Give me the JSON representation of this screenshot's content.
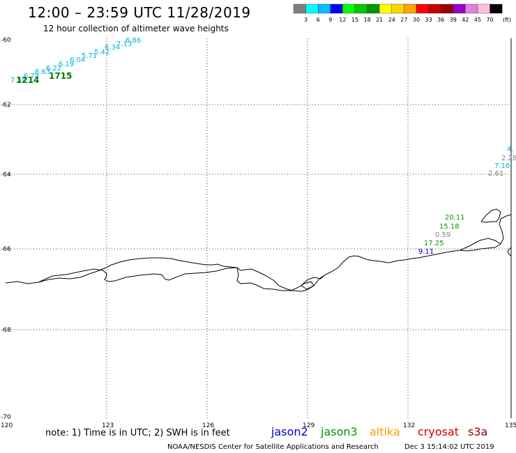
{
  "header": {
    "title": "12:00 – 23:59 UTC 11/28/2019",
    "subtitle": "12 hour collection of altimeter wave heights"
  },
  "color_scale": {
    "labels": [
      "3",
      "6",
      "9",
      "12",
      "15",
      "18",
      "21",
      "24",
      "27",
      "30",
      "33",
      "36",
      "39",
      "42",
      "45",
      "70"
    ],
    "unit": "(ft)",
    "colors": [
      "#7f7f7f",
      "#00ffff",
      "#00bfff",
      "#0000ff",
      "#00ff00",
      "#00c800",
      "#009600",
      "#ffff00",
      "#ffd700",
      "#ffa500",
      "#ff0000",
      "#c80000",
      "#960000",
      "#9600c8",
      "#e080e0",
      "#ffc0e0",
      "#000000"
    ]
  },
  "axes": {
    "lat_labels": [
      "-60",
      "-62",
      "-64",
      "-66",
      "-68",
      "-70"
    ],
    "lon_labels": [
      "120",
      "123",
      "126",
      "129",
      "132",
      "135"
    ]
  },
  "observations": [
    {
      "text": "7.34",
      "color": "#00b0e0",
      "bold": false
    },
    {
      "text": "6.78",
      "color": "#00b0e0",
      "bold": false
    },
    {
      "text": "6.63",
      "color": "#00b0e0",
      "bold": false
    },
    {
      "text": "6.22",
      "color": "#00b0e0",
      "bold": false
    },
    {
      "text": "6.19",
      "color": "#00b0e0",
      "bold": false
    },
    {
      "text": "6.04",
      "color": "#00b0e0",
      "bold": false
    },
    {
      "text": "5.71",
      "color": "#00b0e0",
      "bold": false
    },
    {
      "text": "5.42",
      "color": "#00b0e0",
      "bold": false
    },
    {
      "text": "6.34",
      "color": "#00b0e0",
      "bold": false
    },
    {
      "text": "7.13",
      "color": "#00b0e0",
      "bold": false
    },
    {
      "text": "6.86",
      "color": "#00b0e0",
      "bold": false
    },
    {
      "text": "1214",
      "color": "#007a00",
      "bold": true
    },
    {
      "text": "1715",
      "color": "#007a00",
      "bold": true
    },
    {
      "text": "20.11",
      "color": "#009600",
      "bold": false
    },
    {
      "text": "15.18",
      "color": "#009600",
      "bold": false
    },
    {
      "text": "0.59",
      "color": "#7f7f7f",
      "bold": false
    },
    {
      "text": "17.25",
      "color": "#009600",
      "bold": false
    },
    {
      "text": "9.11",
      "color": "#0000c0",
      "bold": false
    },
    {
      "text": "4.",
      "color": "#00b0e0",
      "bold": false
    },
    {
      "text": "2.28",
      "color": "#7f7f7f",
      "bold": false
    },
    {
      "text": "7.16",
      "color": "#00b0e0",
      "bold": false
    },
    {
      "text": "2.61",
      "color": "#7f7f7f",
      "bold": false
    }
  ],
  "footer": {
    "note": "note: 1) Time is in UTC; 2) SWH is in feet",
    "satellites": [
      {
        "name": "jason2",
        "color": "#0000cc"
      },
      {
        "name": "jason3",
        "color": "#009600"
      },
      {
        "name": "altika",
        "color": "#ff9900"
      },
      {
        "name": "cryosat",
        "color": "#cc0000"
      },
      {
        "name": "s3a",
        "color": "#8b0000"
      }
    ],
    "credit": "NOAA/NESDIS Center for Satellite Applications and Research",
    "timestamp": "Dec  3 15:14:02 UTC 2019"
  }
}
